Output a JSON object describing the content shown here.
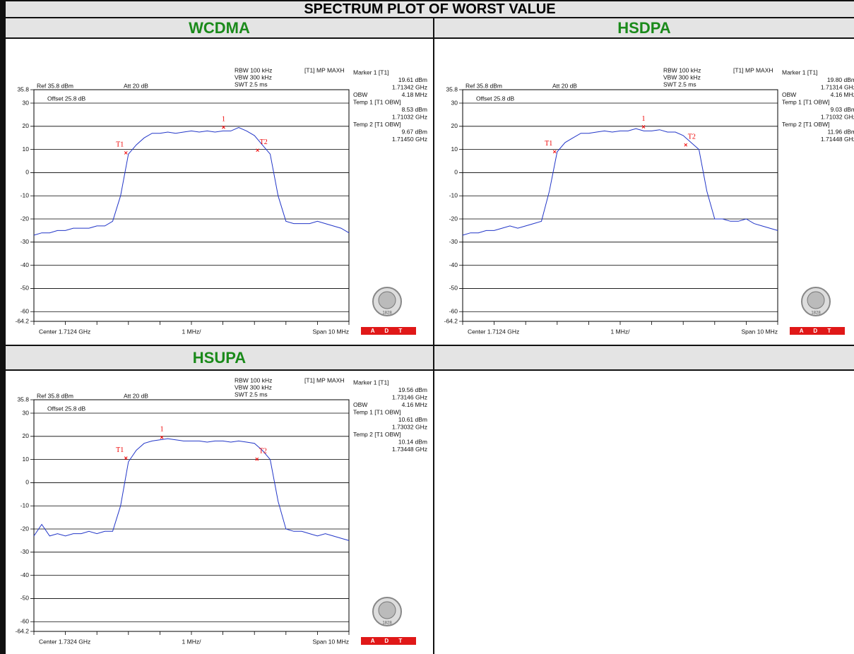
{
  "header": {
    "title": "SPECTRUM PLOT OF WORST VALUE"
  },
  "chart_data": [
    {
      "type": "line",
      "title": "WCDMA",
      "settings": [
        "RBW 100 kHz",
        "VBW 300 kHz",
        "SWT 2.5 ms"
      ],
      "trace_mode": "[T1] MP MAXH",
      "ref": "Ref 35.8 dBm",
      "att": "Att 20 dB",
      "offset": "Offset 25.8 dB",
      "readout": [
        {
          "left": "Marker 1 [T1]"
        },
        {
          "right": "19.61 dBm"
        },
        {
          "right": "1.71342 GHz"
        },
        {
          "left": "OBW",
          "right": "4.18 MHz"
        },
        {
          "left": "Temp 1 [T1 OBW]"
        },
        {
          "right": "8.53 dBm"
        },
        {
          "right": "1.71032 GHz"
        },
        {
          "left": "Temp 2 [T1 OBW]"
        },
        {
          "right": "9.67 dBm"
        },
        {
          "right": "1.71450 GHz"
        }
      ],
      "center": "Center 1.7124 GHz",
      "division": "1 MHz/",
      "span": "Span 10 MHz",
      "xlim": [
        1.7074,
        1.7174
      ],
      "ylim": [
        -64.2,
        35.8
      ],
      "yticks": [
        35.8,
        30,
        20,
        10,
        0,
        -10,
        -20,
        -30,
        -40,
        -50,
        -60,
        -64.2
      ],
      "color": "#2236c8",
      "values": [
        -27,
        -26,
        -26,
        -25,
        -25,
        -24,
        -24,
        -24,
        -23,
        -23,
        -21,
        -10,
        8,
        12,
        15,
        17,
        17,
        17.5,
        17,
        17.5,
        18,
        17.5,
        18,
        17.5,
        18,
        18,
        19.5,
        18,
        16,
        12,
        8,
        -10,
        -21,
        -22,
        -22,
        -22,
        -21,
        -22,
        -23,
        -24,
        -26
      ],
      "markers": [
        {
          "label": "1",
          "x": 1.71342,
          "y": 19.61
        },
        {
          "label": "T1",
          "x": 1.71032,
          "y": 8.53
        },
        {
          "label": "T2",
          "x": 1.7145,
          "y": 9.67
        }
      ]
    },
    {
      "type": "line",
      "title": "HSDPA",
      "settings": [
        "RBW 100 kHz",
        "VBW 300 kHz",
        "SWT 2.5 ms"
      ],
      "trace_mode": "[T1] MP MAXH",
      "ref": "Ref 35.8 dBm",
      "att": "Att 20 dB",
      "offset": "Offset 25.8 dB",
      "readout": [
        {
          "left": "Marker 1 [T1]"
        },
        {
          "right": "19.80 dBm"
        },
        {
          "right": "1.71314 GHz"
        },
        {
          "left": "OBW",
          "right": "4.16 MHz"
        },
        {
          "left": "Temp 1 [T1 OBW]"
        },
        {
          "right": "9.03 dBm"
        },
        {
          "right": "1.71032 GHz"
        },
        {
          "left": "Temp 2 [T1 OBW]"
        },
        {
          "right": "11.96 dBm"
        },
        {
          "right": "1.71448 GHz"
        }
      ],
      "center": "Center 1.7124 GHz",
      "division": "1 MHz/",
      "span": "Span 10 MHz",
      "xlim": [
        1.7074,
        1.7174
      ],
      "ylim": [
        -64.2,
        35.8
      ],
      "yticks": [
        35.8,
        30,
        20,
        10,
        0,
        -10,
        -20,
        -30,
        -40,
        -50,
        -60,
        -64.2
      ],
      "color": "#2236c8",
      "values": [
        -27,
        -26,
        -26,
        -25,
        -25,
        -24,
        -23,
        -24,
        -23,
        -22,
        -21,
        -8,
        9,
        13,
        15,
        17,
        17,
        17.5,
        18,
        17.5,
        18,
        18,
        19,
        18,
        18,
        18.5,
        17.5,
        17.5,
        16,
        13,
        10,
        -8,
        -20,
        -20,
        -21,
        -21,
        -20,
        -22,
        -23,
        -24,
        -25
      ],
      "markers": [
        {
          "label": "1",
          "x": 1.71314,
          "y": 19.8
        },
        {
          "label": "T1",
          "x": 1.71032,
          "y": 9.03
        },
        {
          "label": "T2",
          "x": 1.71448,
          "y": 11.96
        }
      ]
    },
    {
      "type": "line",
      "title": "HSUPA",
      "settings": [
        "RBW 100 kHz",
        "VBW 300 kHz",
        "SWT 2.5 ms"
      ],
      "trace_mode": "[T1] MP MAXH",
      "ref": "Ref 35.8 dBm",
      "att": "Att 20 dB",
      "offset": "Offset 25.8 dB",
      "readout": [
        {
          "left": "Marker 1 [T1]"
        },
        {
          "right": "19.56 dBm"
        },
        {
          "right": "1.73146 GHz"
        },
        {
          "left": "OBW",
          "right": "4.16 MHz"
        },
        {
          "left": "Temp 1 [T1 OBW]"
        },
        {
          "right": "10.61 dBm"
        },
        {
          "right": "1.73032 GHz"
        },
        {
          "left": "Temp 2 [T1 OBW]"
        },
        {
          "right": "10.14 dBm"
        },
        {
          "right": "1.73448 GHz"
        }
      ],
      "center": "Center 1.7324 GHz",
      "division": "1 MHz/",
      "span": "Span 10 MHz",
      "xlim": [
        1.7274,
        1.7374
      ],
      "ylim": [
        -64.2,
        35.8
      ],
      "yticks": [
        35.8,
        30,
        20,
        10,
        0,
        -10,
        -20,
        -30,
        -40,
        -50,
        -60,
        -64.2
      ],
      "color": "#2236c8",
      "values": [
        -23,
        -18,
        -23,
        -22,
        -23,
        -22,
        -22,
        -21,
        -22,
        -21,
        -21,
        -10,
        9,
        14,
        17,
        18,
        18.5,
        19,
        18.5,
        18,
        18,
        18,
        17.5,
        18,
        18,
        17.5,
        18,
        17.5,
        17,
        14,
        10,
        -8,
        -20,
        -21,
        -21,
        -22,
        -23,
        -22,
        -23,
        -24,
        -25
      ],
      "markers": [
        {
          "label": "1",
          "x": 1.73146,
          "y": 19.56
        },
        {
          "label": "T1",
          "x": 1.73032,
          "y": 10.61
        },
        {
          "label": "T2",
          "x": 1.73448,
          "y": 10.14
        }
      ]
    }
  ],
  "logo": {
    "seal": "1828",
    "brand": "A D T"
  }
}
